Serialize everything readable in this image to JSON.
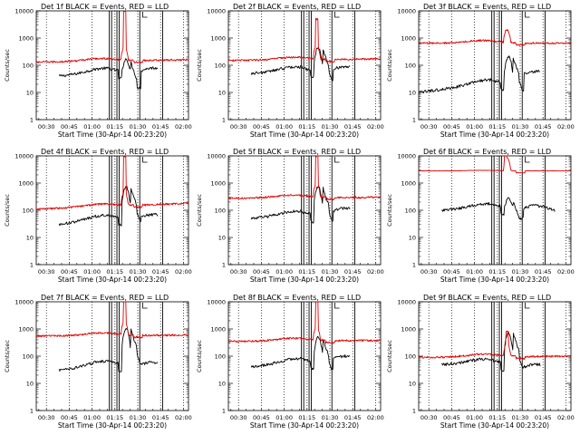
{
  "figure": {
    "ylabel": "Counts/sec",
    "xlabel": "Start Time (30-Apr-14 00:23:20)",
    "xticks": [
      "00:30",
      "00:45",
      "01:00",
      "01:15",
      "01:30",
      "01:45",
      "02:00"
    ],
    "yticks": [
      "1",
      "10",
      "100",
      "1000",
      "10000"
    ],
    "colors": {
      "events": "#000000",
      "lld": "#e00000",
      "axes": "#000000"
    }
  },
  "chart_data": [
    {
      "type": "line",
      "title": "Det 1f BLACK = Events, RED = LLD",
      "xlim_minutes_from_start": [
        0,
        100
      ],
      "ylim": [
        1,
        10000
      ],
      "yscale": "log",
      "x_axis_unit": "minutes after 00:23:20",
      "vertical_markers_minutes": [
        48,
        49.5,
        53,
        54.5,
        68,
        83
      ],
      "series": [
        {
          "name": "Events",
          "color": "#000000",
          "x_range": [
            15,
            80
          ],
          "baseline_start": 40,
          "baseline_end": 90,
          "flare_peak": 130,
          "flare_dip": 15,
          "post_flare_level": 80
        },
        {
          "name": "LLD",
          "color": "#e00000",
          "x_range": [
            0,
            100
          ],
          "baseline_start": 130,
          "baseline_end": 160,
          "spike_peak": 10000,
          "spike_at_min": 58,
          "post_flare_level": 150
        }
      ]
    },
    {
      "type": "line",
      "title": "Det 2f BLACK = Events, RED = LLD",
      "xlim_minutes_from_start": [
        0,
        100
      ],
      "ylim": [
        1,
        10000
      ],
      "yscale": "log",
      "x_axis_unit": "minutes after 00:23:20",
      "vertical_markers_minutes": [
        48,
        49.5,
        53,
        54.5,
        68,
        83
      ],
      "series": [
        {
          "name": "Events",
          "color": "#000000",
          "x_range": [
            15,
            80
          ],
          "baseline_start": 50,
          "baseline_end": 90,
          "flare_peak": 400,
          "flare_dip": 30,
          "post_flare_level": 90
        },
        {
          "name": "LLD",
          "color": "#e00000",
          "x_range": [
            0,
            100
          ],
          "baseline_start": 150,
          "baseline_end": 170,
          "spike_peak": 5000,
          "spike_at_min": 58,
          "post_flare_level": 160
        }
      ]
    },
    {
      "type": "line",
      "title": "Det 3f BLACK = Events, RED = LLD",
      "xlim_minutes_from_start": [
        0,
        100
      ],
      "ylim": [
        1,
        10000
      ],
      "yscale": "log",
      "x_axis_unit": "minutes after 00:23:20",
      "vertical_markers_minutes": [
        48,
        49.5,
        53,
        54.5,
        68,
        83
      ],
      "series": [
        {
          "name": "Events",
          "color": "#000000",
          "x_range": [
            0,
            80
          ],
          "baseline_start": 10,
          "baseline_end": 40,
          "flare_peak": 200,
          "flare_dip": 12,
          "post_flare_level": 60
        },
        {
          "name": "LLD",
          "color": "#e00000",
          "x_range": [
            0,
            100
          ],
          "baseline_start": 650,
          "baseline_end": 650,
          "spike_peak": 2000,
          "spike_at_min": 58,
          "post_flare_level": 650
        }
      ]
    },
    {
      "type": "line",
      "title": "Det 4f BLACK = Events, RED = LLD",
      "xlim_minutes_from_start": [
        0,
        100
      ],
      "ylim": [
        1,
        10000
      ],
      "yscale": "log",
      "x_axis_unit": "minutes after 00:23:20",
      "vertical_markers_minutes": [
        48,
        49.5,
        53,
        54.5,
        68,
        83
      ],
      "series": [
        {
          "name": "Events",
          "color": "#000000",
          "x_range": [
            15,
            80
          ],
          "baseline_start": 30,
          "baseline_end": 90,
          "flare_peak": 700,
          "flare_dip": 20,
          "post_flare_level": 70
        },
        {
          "name": "LLD",
          "color": "#e00000",
          "x_range": [
            0,
            100
          ],
          "baseline_start": 110,
          "baseline_end": 180,
          "spike_peak": 10000,
          "spike_at_min": 58,
          "post_flare_level": 150
        }
      ]
    },
    {
      "type": "line",
      "title": "Det 5f BLACK = Events, RED = LLD",
      "xlim_minutes_from_start": [
        0,
        100
      ],
      "ylim": [
        1,
        10000
      ],
      "yscale": "log",
      "x_axis_unit": "minutes after 00:23:20",
      "vertical_markers_minutes": [
        48,
        49.5,
        53,
        54.5,
        68,
        83
      ],
      "series": [
        {
          "name": "Events",
          "color": "#000000",
          "x_range": [
            15,
            80
          ],
          "baseline_start": 50,
          "baseline_end": 100,
          "flare_peak": 700,
          "flare_dip": 30,
          "post_flare_level": 120
        },
        {
          "name": "LLD",
          "color": "#e00000",
          "x_range": [
            0,
            100
          ],
          "baseline_start": 280,
          "baseline_end": 300,
          "spike_peak": 10000,
          "spike_at_min": 58,
          "post_flare_level": 350
        }
      ]
    },
    {
      "type": "line",
      "title": "Det 6f BLACK = Events, RED = LLD",
      "xlim_minutes_from_start": [
        0,
        100
      ],
      "ylim": [
        1,
        10000
      ],
      "yscale": "log",
      "x_axis_unit": "minutes after 00:23:20",
      "vertical_markers_minutes": [
        48,
        49.5,
        53,
        54.5,
        68,
        83
      ],
      "series": [
        {
          "name": "Events",
          "color": "#000000",
          "x_range": [
            15,
            90
          ],
          "baseline_start": 100,
          "baseline_end": 200,
          "flare_peak": 200,
          "flare_dip": 50,
          "post_flare_level": 150
        },
        {
          "name": "LLD",
          "color": "#e00000",
          "x_range": [
            0,
            100
          ],
          "baseline_start": 2800,
          "baseline_end": 2800,
          "spike_peak": 10000,
          "spike_at_min": 57,
          "post_flare_level": 2800
        }
      ]
    },
    {
      "type": "line",
      "title": "Det 7f BLACK = Events, RED = LLD",
      "xlim_minutes_from_start": [
        0,
        100
      ],
      "ylim": [
        1,
        10000
      ],
      "yscale": "log",
      "x_axis_unit": "minutes after 00:23:20",
      "vertical_markers_minutes": [
        48,
        49.5,
        53,
        54.5,
        68,
        83
      ],
      "series": [
        {
          "name": "Events",
          "color": "#000000",
          "x_range": [
            15,
            80
          ],
          "baseline_start": 30,
          "baseline_end": 90,
          "flare_peak": 1000,
          "flare_dip": 20,
          "post_flare_level": 60
        },
        {
          "name": "LLD",
          "color": "#e00000",
          "x_range": [
            0,
            100
          ],
          "baseline_start": 550,
          "baseline_end": 600,
          "spike_peak": 10000,
          "spike_at_min": 58,
          "post_flare_level": 600
        }
      ]
    },
    {
      "type": "line",
      "title": "Det 8f BLACK = Events, RED = LLD",
      "xlim_minutes_from_start": [
        0,
        100
      ],
      "ylim": [
        1,
        10000
      ],
      "yscale": "log",
      "x_axis_unit": "minutes after 00:23:20",
      "vertical_markers_minutes": [
        48,
        49.5,
        53,
        54.5,
        68,
        83
      ],
      "series": [
        {
          "name": "Events",
          "color": "#000000",
          "x_range": [
            15,
            80
          ],
          "baseline_start": 40,
          "baseline_end": 100,
          "flare_peak": 450,
          "flare_dip": 30,
          "post_flare_level": 100
        },
        {
          "name": "LLD",
          "color": "#e00000",
          "x_range": [
            0,
            100
          ],
          "baseline_start": 350,
          "baseline_end": 380,
          "spike_peak": 10000,
          "spike_at_min": 58,
          "post_flare_level": 380
        }
      ]
    },
    {
      "type": "line",
      "title": "Det 9f BLACK = Events, RED = LLD",
      "xlim_minutes_from_start": [
        0,
        100
      ],
      "ylim": [
        1,
        10000
      ],
      "yscale": "log",
      "x_axis_unit": "minutes after 00:23:20",
      "vertical_markers_minutes": [
        48,
        49.5,
        53,
        54.5,
        68,
        83
      ],
      "series": [
        {
          "name": "Events",
          "color": "#000000",
          "x_range": [
            15,
            80
          ],
          "baseline_start": 50,
          "baseline_end": 70,
          "flare_peak": 700,
          "flare_dip": 20,
          "post_flare_level": 50
        },
        {
          "name": "LLD",
          "color": "#e00000",
          "x_range": [
            0,
            100
          ],
          "baseline_start": 90,
          "baseline_end": 100,
          "spike_peak": 800,
          "spike_at_min": 58,
          "post_flare_level": 100
        }
      ]
    }
  ]
}
